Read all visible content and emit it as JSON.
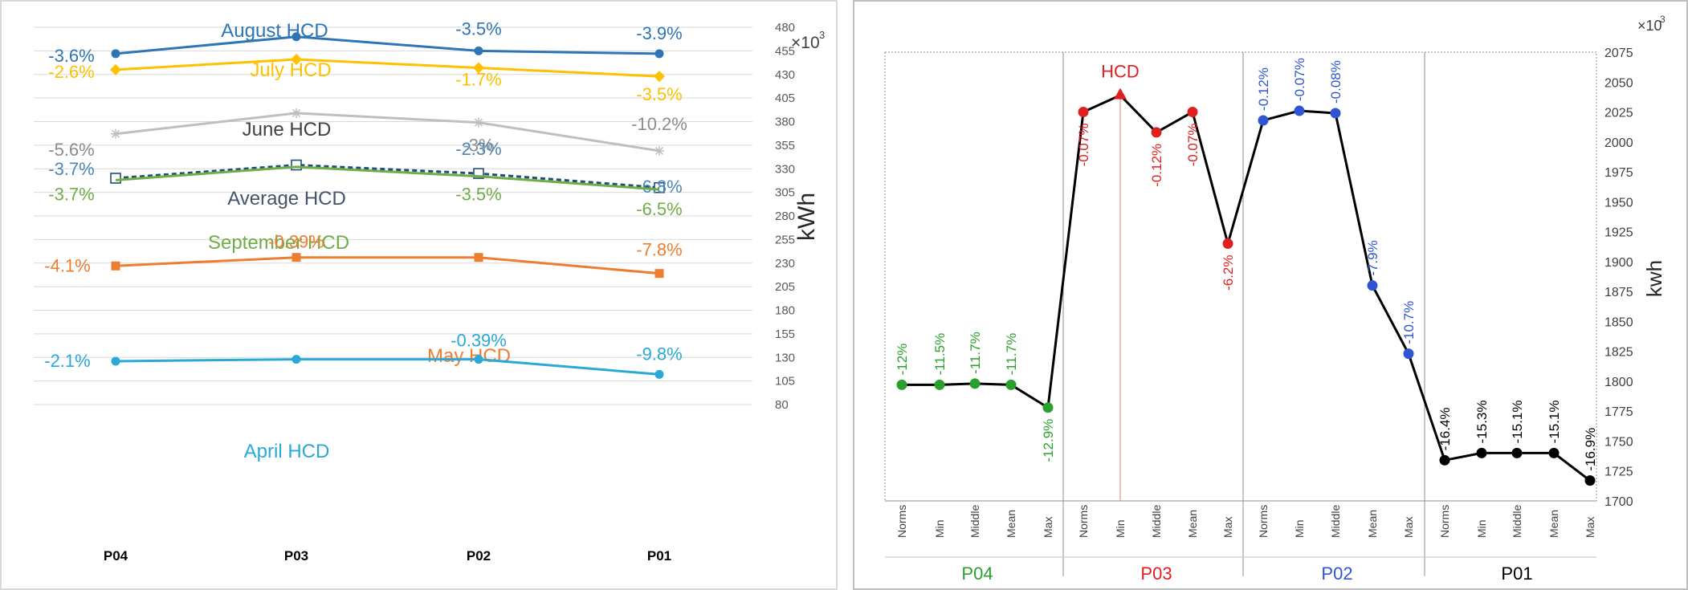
{
  "chart_data": [
    {
      "type": "line",
      "xlabel": "",
      "ylabel": "kWh",
      "y_multiplier": "×10",
      "y_multiplier_exp": "3",
      "ylim": [
        80,
        480
      ],
      "yticks": [
        80,
        105,
        130,
        155,
        180,
        205,
        230,
        255,
        280,
        305,
        330,
        355,
        380,
        405,
        430,
        455,
        480
      ],
      "categories": [
        "P04",
        "P03",
        "P02",
        "P01"
      ],
      "gridlines": true,
      "series": [
        {
          "name": "August HCD",
          "color": "#2e75b6",
          "marker": "circle",
          "values": [
            452,
            470,
            455,
            452
          ],
          "labels": [
            "-3.6%",
            "",
            "-3.5%",
            "-3.9%"
          ]
        },
        {
          "name": "July HCD",
          "color": "#ffc000",
          "marker": "diamond",
          "values": [
            435,
            446,
            437,
            428
          ],
          "labels": [
            "-2.6%",
            "",
            "-1.7%",
            "-3.5%"
          ]
        },
        {
          "name": "June HCD",
          "color": "#bfbfbf",
          "marker": "star",
          "values": [
            367,
            389,
            379,
            349
          ],
          "labels": [
            "-5.6%",
            "",
            "-3%",
            "-10.2%"
          ]
        },
        {
          "name": "Average HCD",
          "color": "#1f4e79",
          "marker": "square-open",
          "dash": true,
          "values": [
            320,
            334,
            325,
            310
          ],
          "labels": [
            "-3.7%",
            "",
            "-2.3%",
            "-6.8%"
          ]
        },
        {
          "name": "September HCD",
          "color": "#70ad47",
          "marker": "none",
          "values": [
            318,
            332,
            322,
            308
          ],
          "labels": [
            "-3.7%",
            "",
            "-3.5%",
            "-6.5%"
          ]
        },
        {
          "name": "May HCD",
          "color": "#ed7d31",
          "marker": "square",
          "values": [
            227,
            236,
            236,
            219
          ],
          "labels": [
            "-4.1%",
            "-0.39%",
            "",
            "-7.8%"
          ]
        },
        {
          "name": "April HCD",
          "color": "#2aa8d8",
          "marker": "circle",
          "values": [
            126,
            128,
            128,
            112
          ],
          "labels": [
            "-2.1%",
            "",
            "-0.39%",
            "-9.8%"
          ]
        }
      ]
    },
    {
      "type": "line",
      "xlabel": "",
      "ylabel": "kwh",
      "y_multiplier": "×10",
      "y_multiplier_exp": "3",
      "ylim": [
        1700,
        2075
      ],
      "yticks": [
        1700,
        1725,
        1750,
        1775,
        1800,
        1825,
        1850,
        1875,
        1900,
        1925,
        1950,
        1975,
        2000,
        2025,
        2050,
        2075
      ],
      "annotation": "HCD",
      "annotation_value": 2039,
      "annotation_color": "#e0201f",
      "groups": [
        {
          "name": "P04",
          "color": "#2ca02c",
          "categories": [
            "Norms",
            "Min",
            "Middle",
            "Mean",
            "Max"
          ],
          "values": [
            1797,
            1797,
            1798,
            1797,
            1778
          ],
          "labels": [
            "-12%",
            "-11.5%",
            "-11.7%",
            "-11.7%",
            "-12.9%"
          ]
        },
        {
          "name": "P03",
          "color": "#e0201f",
          "categories": [
            "Norms",
            "Min",
            "Middle",
            "Mean",
            "Max"
          ],
          "values": [
            2025,
            2039,
            2008,
            2025,
            1915
          ],
          "labels": [
            "-0.07%",
            "",
            "-0.12%",
            "-0.07%",
            "-6.2%"
          ]
        },
        {
          "name": "P02",
          "color": "#2f55d4",
          "categories": [
            "Norms",
            "Min",
            "Middle",
            "Mean",
            "Max"
          ],
          "values": [
            2018,
            2026,
            2024,
            1880,
            1823
          ],
          "labels": [
            "-0.12%",
            "-0.07%",
            "-0.08%",
            "-7.9%",
            "-10.7%"
          ]
        },
        {
          "name": "P01",
          "color": "#000000",
          "categories": [
            "Norms",
            "Min",
            "Middle",
            "Mean",
            "Max"
          ],
          "values": [
            1734,
            1740,
            1740,
            1740,
            1717
          ],
          "labels": [
            "-16.4%",
            "-15.3%",
            "-15.1%",
            "-15.1%",
            "-16.9%"
          ]
        }
      ]
    }
  ]
}
